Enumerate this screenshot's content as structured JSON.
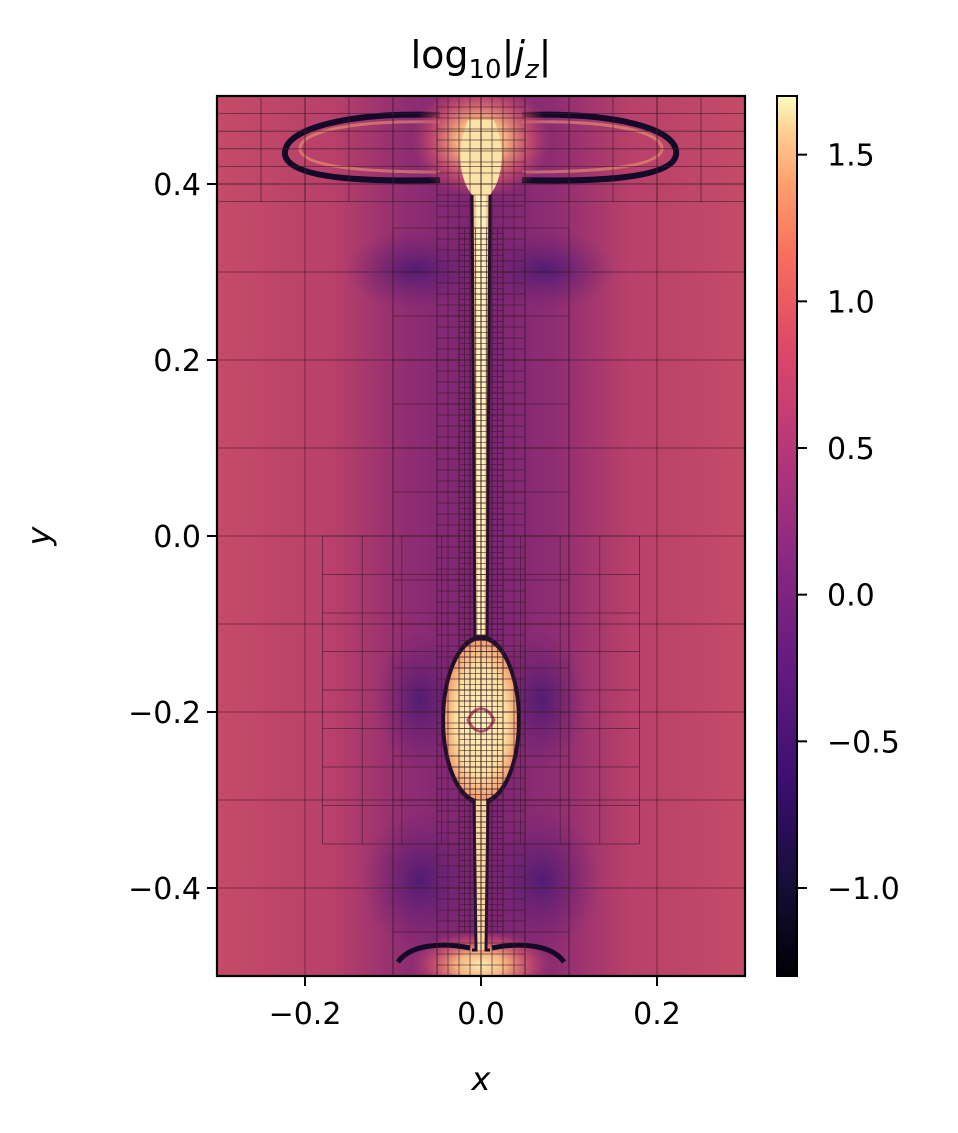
{
  "chart_data": {
    "type": "heatmap",
    "title": "log",
    "title_sub": "10",
    "title_var": "j",
    "title_var_sub": "z",
    "xlabel": "x",
    "ylabel": "y",
    "xlim": [
      -0.3,
      0.3
    ],
    "ylim": [
      -0.5,
      0.5
    ],
    "x_ticks": [
      -0.2,
      0.0,
      0.2
    ],
    "x_tick_labels": [
      "−0.2",
      "0.0",
      "0.2"
    ],
    "y_ticks": [
      -0.4,
      -0.2,
      0.0,
      0.2,
      0.4
    ],
    "y_tick_labels": [
      "−0.4",
      "−0.2",
      "0.0",
      "0.2",
      "0.4"
    ],
    "colorbar": {
      "range": [
        -1.3,
        1.7
      ],
      "ticks": [
        -1.0,
        -0.5,
        0.0,
        0.5,
        1.0,
        1.5
      ],
      "tick_labels": [
        "−1.0",
        "−0.5",
        "0.0",
        "0.5",
        "1.0",
        "1.5"
      ],
      "colormap": "magma"
    },
    "field_description_values": {
      "background_level": 0.5,
      "current_sheet_level": 1.6,
      "current_sheet_x_center": 0.0,
      "current_sheet_y_range": [
        -0.5,
        0.5
      ],
      "plasmoid_y_center": -0.17,
      "top_outflow_y": 0.43,
      "bottom_outflow_y": -0.48
    },
    "grid_lines": true,
    "grid_color": "#3a1a2a"
  }
}
